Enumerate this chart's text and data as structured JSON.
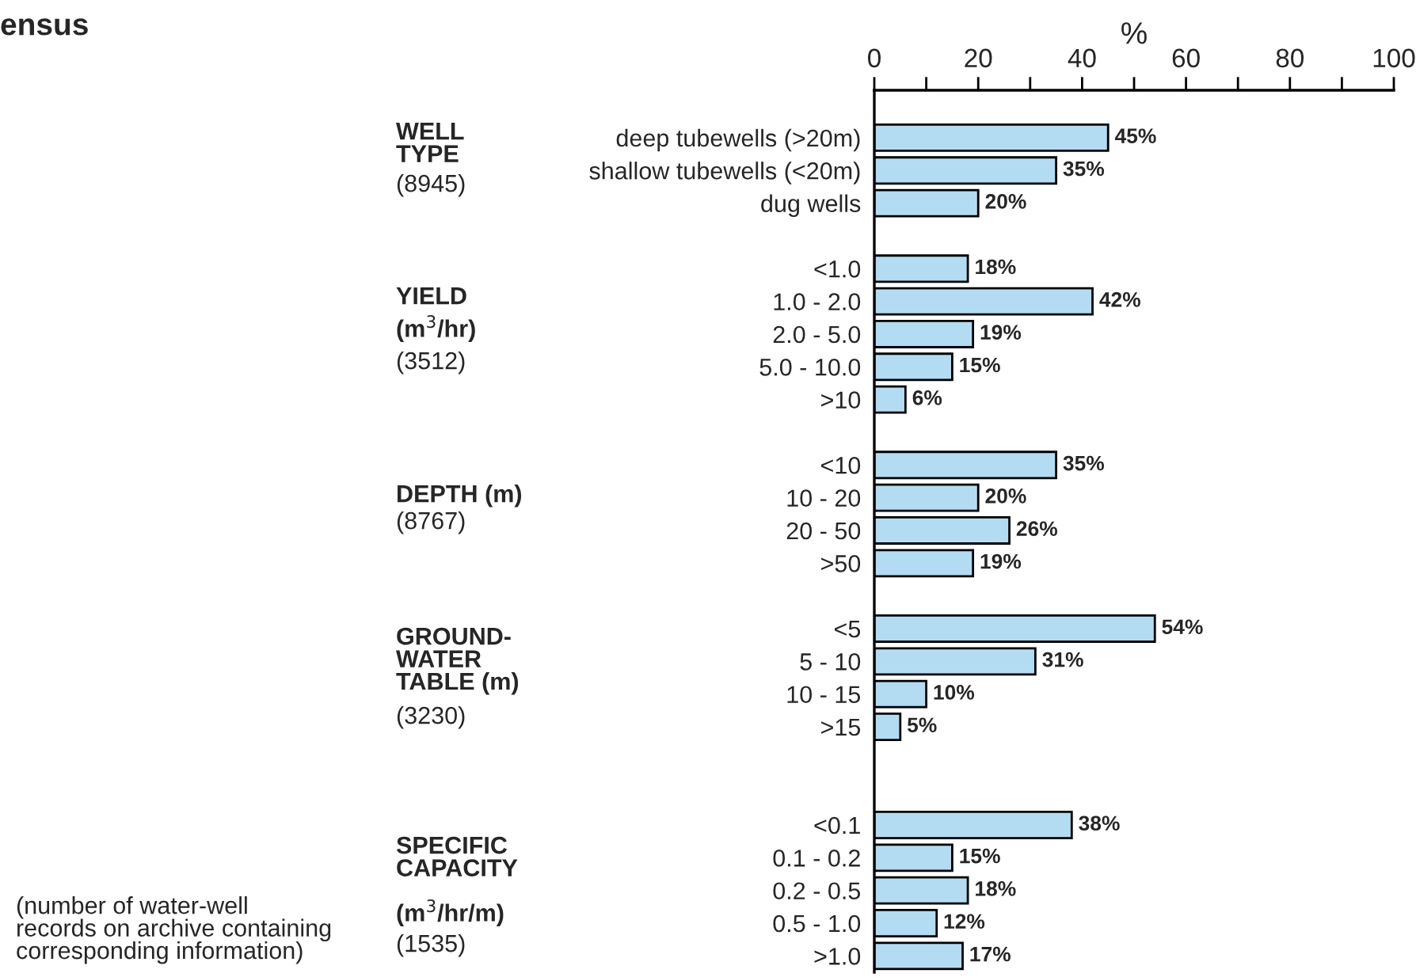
{
  "chart_data": {
    "type": "bar",
    "orientation": "horizontal",
    "title": "ensus",
    "xlabel": "%",
    "categories": [
      "deep tubewells (>20m)",
      "shallow tubewells (<20m)",
      "dug wells",
      null,
      "<1.0",
      "1.0 - 2.0",
      "2.0 - 5.0",
      "5.0 - 10.0",
      ">10",
      null,
      "<10",
      "10 - 20",
      "20 - 50",
      ">50",
      null,
      "<5",
      "5 - 10",
      "10 - 15",
      ">15",
      null,
      null,
      "<0.1",
      "0.1 - 0.2",
      "0.2 - 0.5",
      "0.5 - 1.0",
      ">1.0"
    ],
    "values": [
      45,
      35,
      20,
      null,
      18,
      42,
      19,
      15,
      6,
      null,
      35,
      20,
      26,
      19,
      null,
      54,
      31,
      10,
      5,
      null,
      null,
      38,
      15,
      18,
      12,
      17
    ],
    "value_labels": [
      "45%",
      "35%",
      "20%",
      null,
      "18%",
      "42%",
      "19%",
      "15%",
      "6%",
      null,
      "35%",
      "20%",
      "26%",
      "19%",
      null,
      "54%",
      "31%",
      "10%",
      "5%",
      null,
      null,
      "38%",
      "15%",
      "18%",
      "12%",
      "17%"
    ],
    "color": "#b3dcf2",
    "xlim": [
      0,
      100
    ],
    "xticks": [
      0,
      {
        "value": 10,
        "label": null
      },
      20,
      {
        "value": 30,
        "label": null
      },
      40,
      {
        "value": 50,
        "label": null
      },
      60,
      {
        "value": 70,
        "label": null
      },
      80,
      {
        "value": 90,
        "label": null
      },
      100
    ],
    "grid": false,
    "annotations": [
      "WELL\nTYPE",
      "(8945)",
      "YIELD",
      "(m$^{3}$/hr)",
      "(3512)",
      "DEPTH (m)",
      "(8767)",
      "GROUND-\nWATER\nTABLE (m)",
      "(3230)",
      "SPECIFIC\nCAPACITY",
      "(m$^{3}$/hr/m)",
      "(1535)",
      "(number of water-well\nrecords on archive containing\ncorresponding information)"
    ]
  }
}
